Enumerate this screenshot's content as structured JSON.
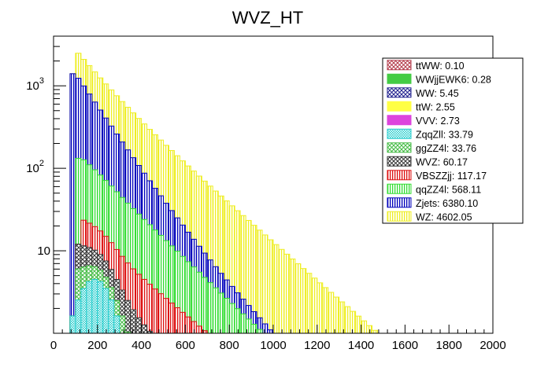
{
  "chart_data": {
    "type": "histogram-stacked",
    "title": "WVZ_HT",
    "xlabel": "",
    "ylabel": "",
    "xlim": [
      0,
      2000
    ],
    "ylim": [
      1,
      4000
    ],
    "yscale": "log",
    "bin_width": 25,
    "x_ticks": [
      0,
      200,
      400,
      600,
      800,
      1000,
      1200,
      1400,
      1600,
      1800,
      2000
    ],
    "y_ticks": [
      {
        "value": 10,
        "label": "10"
      },
      {
        "value": 100,
        "label": "10",
        "exponent": "2"
      },
      {
        "value": 1000,
        "label": "10",
        "exponent": "3"
      }
    ],
    "legend_position": "top-right",
    "series": [
      {
        "name": "ttWW: 0.10",
        "color": "#b33a4a",
        "pattern": "crosshatch",
        "start": 0,
        "shape": "none",
        "peak": 0
      },
      {
        "name": "WWjjEWK6: 0.28",
        "color": "#44cc44",
        "pattern": "solid",
        "start": 0,
        "shape": "none",
        "peak": 0
      },
      {
        "name": "WW: 5.45",
        "color": "#22228f",
        "pattern": "crosshatch",
        "start": 0,
        "shape": "none",
        "peak": 0
      },
      {
        "name": "ttW: 2.55",
        "color": "#ffff44",
        "pattern": "solid",
        "start": 0,
        "shape": "none",
        "peak": 0
      },
      {
        "name": "VVV: 2.73",
        "color": "#dd44dd",
        "pattern": "solid",
        "start": 0,
        "shape": "none",
        "peak": 0
      },
      {
        "name": "ZqqZll: 33.79",
        "color": "#22cccc",
        "pattern": "dots",
        "start": 75,
        "shape": "gauss",
        "peak": 4.5,
        "mu": 175,
        "sigma": 70
      },
      {
        "name": "ggZZ4l: 33.76",
        "color": "#44bb44",
        "pattern": "crosshatch",
        "start": 100,
        "shape": "expo",
        "peak": 3.5,
        "lambda": 125
      },
      {
        "name": "WVZ: 60.17",
        "color": "#333333",
        "pattern": "crosshatch",
        "start": 100,
        "shape": "expo",
        "peak": 6,
        "lambda": 160
      },
      {
        "name": "VBSZZjj: 117.17",
        "color": "#dd1111",
        "pattern": "vlines",
        "start": 125,
        "shape": "expo",
        "peak": 12,
        "lambda": 210
      },
      {
        "name": "qqZZ4l: 568.11",
        "color": "#33dd33",
        "pattern": "vlines",
        "start": 100,
        "shape": "expo",
        "peak": 120,
        "lambda": 165
      },
      {
        "name": "Zjets: 6380.10",
        "color": "#0000bb",
        "pattern": "vlines",
        "start": 75,
        "shape": "expo",
        "peak": 1400,
        "lambda": 105
      },
      {
        "name": "WZ: 4602.05",
        "color": "#eeee22",
        "pattern": "vlines",
        "start": 100,
        "shape": "expo",
        "peak": 1250,
        "lambda": 190
      }
    ]
  }
}
